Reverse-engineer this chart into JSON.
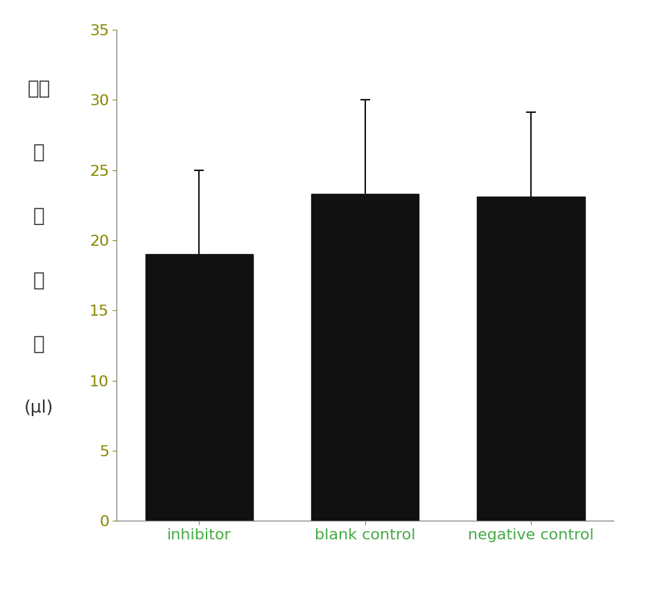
{
  "categories": [
    "inhibitor",
    "blank control",
    "negative control"
  ],
  "values": [
    19.0,
    23.3,
    23.1
  ],
  "errors": [
    6.0,
    6.7,
    6.0
  ],
  "bar_color": "#111111",
  "error_color": "#111111",
  "ylabel_chars": [
    "虫体",
    "宽",
    "度",
    "均",
    "値"
  ],
  "ylabel_unit": "(μl)",
  "xlabel_color": "#44aa44",
  "ytick_color": "#888800",
  "ylim": [
    0,
    35
  ],
  "yticks": [
    0,
    5,
    10,
    15,
    20,
    25,
    30,
    35
  ],
  "bar_width": 0.65,
  "figsize": [
    9.32,
    8.55
  ],
  "dpi": 100,
  "background_color": "#ffffff",
  "tick_label_fontsize": 16,
  "ylabel_fontsize": 20,
  "xlabel_fontsize": 16,
  "xlim": [
    -0.5,
    2.5
  ]
}
